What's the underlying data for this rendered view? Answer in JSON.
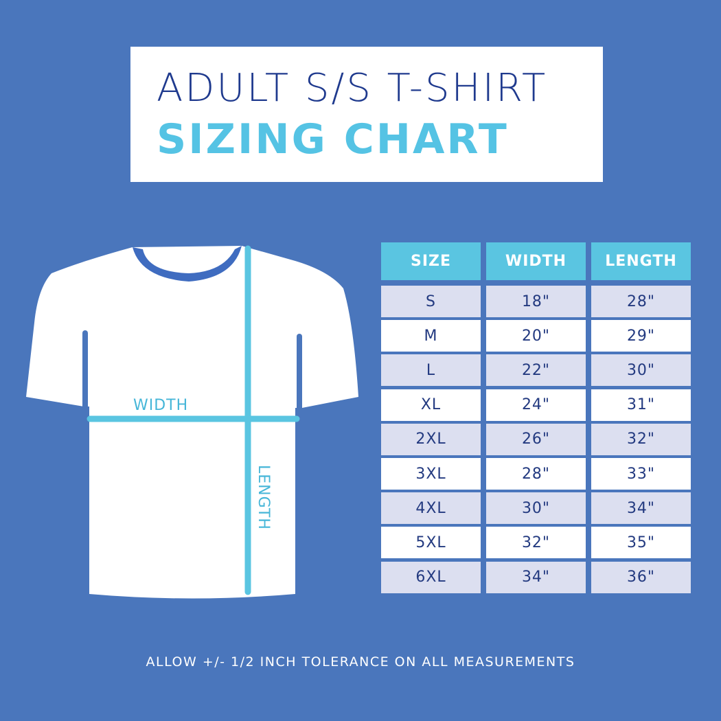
{
  "title": {
    "line1": "ADULT S/S T-SHIRT",
    "line2": "SIZING CHART"
  },
  "diagram": {
    "width_label": "WIDTH",
    "length_label": "LENGTH"
  },
  "table": {
    "headers": [
      "SIZE",
      "WIDTH",
      "LENGTH"
    ],
    "rows": [
      [
        "S",
        "18\"",
        "28\""
      ],
      [
        "M",
        "20\"",
        "29\""
      ],
      [
        "L",
        "22\"",
        "30\""
      ],
      [
        "XL",
        "24\"",
        "31\""
      ],
      [
        "2XL",
        "26\"",
        "32\""
      ],
      [
        "3XL",
        "28\"",
        "33\""
      ],
      [
        "4XL",
        "30\"",
        "34\""
      ],
      [
        "5XL",
        "32\"",
        "35\""
      ],
      [
        "6XL",
        "34\"",
        "36\""
      ]
    ]
  },
  "note": "ALLOW +/- 1/2 INCH TOLERANCE ON ALL MEASUREMENTS",
  "colors": {
    "background": "#4a76bc",
    "accent": "#5ac5e1",
    "navy": "#1f3a8e",
    "row_alt": "#dcdff0"
  }
}
